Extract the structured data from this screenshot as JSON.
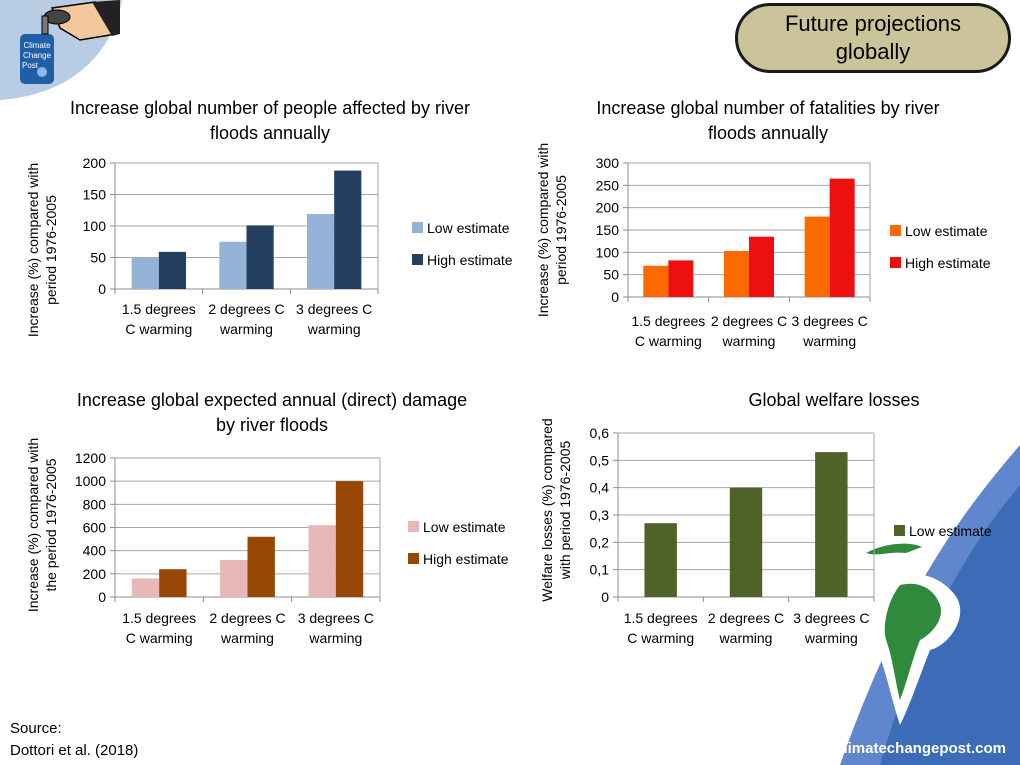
{
  "header": {
    "badge_text": "Future projections globally"
  },
  "logo": {
    "text_line1": "Climate",
    "text_line2": "Change",
    "text_line3": "Post"
  },
  "source": {
    "line1": "Source:",
    "line2": "Dottori et al. (2018)"
  },
  "footer": {
    "url": "www.climatechangepost.com"
  },
  "colors": {
    "people_low": "#95b3d7",
    "people_high": "#243f60",
    "fatal_low": "#fb6a00",
    "fatal_high": "#ee0f10",
    "damage_low": "#e6b8b8",
    "damage_high": "#974706",
    "welfare_low": "#4f6228"
  },
  "chart_data": [
    {
      "id": "people",
      "type": "bar",
      "title": [
        "Increase global number of people affected by river",
        "floods annually"
      ],
      "ylabel": [
        "Increase (%) compared with",
        "period 1976-2005"
      ],
      "categories": [
        [
          "1.5 degrees",
          "C warming"
        ],
        [
          "2 degrees C",
          "warming"
        ],
        [
          "3 degrees C",
          "warming"
        ]
      ],
      "ylim": [
        0,
        200
      ],
      "yticks": [
        0,
        50,
        100,
        150,
        200
      ],
      "ytick_labels": [
        "0",
        "50",
        "100",
        "150",
        "200"
      ],
      "series": [
        {
          "name": "Low estimate",
          "values": [
            50,
            75,
            119
          ]
        },
        {
          "name": "High estimate",
          "values": [
            59,
            101,
            188
          ]
        }
      ],
      "grid": true,
      "legend": "right"
    },
    {
      "id": "fatal",
      "type": "bar",
      "title": [
        "Increase global number of fatalities by river",
        "floods annually"
      ],
      "ylabel": [
        "Increase (%) compared with",
        "period 1976-2005"
      ],
      "categories": [
        [
          "1.5 degrees",
          "C warming"
        ],
        [
          "2 degrees C",
          "warming"
        ],
        [
          "3 degrees C",
          "warming"
        ]
      ],
      "ylim": [
        0,
        300
      ],
      "yticks": [
        0,
        50,
        100,
        150,
        200,
        250,
        300
      ],
      "ytick_labels": [
        "0",
        "50",
        "100",
        "150",
        "200",
        "250",
        "300"
      ],
      "series": [
        {
          "name": "Low estimate",
          "values": [
            70,
            103,
            180
          ]
        },
        {
          "name": "High estimate",
          "values": [
            82,
            135,
            265
          ]
        }
      ],
      "grid": true,
      "legend": "right"
    },
    {
      "id": "damage",
      "type": "bar",
      "title": [
        "Increase global expected annual (direct) damage",
        "by river floods"
      ],
      "ylabel": [
        "Increase (%) compared with",
        "the period 1976-2005"
      ],
      "categories": [
        [
          "1.5 degrees",
          "C warming"
        ],
        [
          "2 degrees C",
          "warming"
        ],
        [
          "3 degrees C",
          "warming"
        ]
      ],
      "ylim": [
        0,
        1200
      ],
      "yticks": [
        0,
        200,
        400,
        600,
        800,
        1000,
        1200
      ],
      "ytick_labels": [
        "0",
        "200",
        "400",
        "600",
        "800",
        "1000",
        "1200"
      ],
      "series": [
        {
          "name": "Low estimate",
          "values": [
            160,
            320,
            620
          ]
        },
        {
          "name": "High estimate",
          "values": [
            240,
            520,
            1000
          ]
        }
      ],
      "grid": true,
      "legend": "right"
    },
    {
      "id": "welfare",
      "type": "bar",
      "title": [
        "Global welfare losses"
      ],
      "ylabel": [
        "Welfare losses (%) compared",
        "with period 1976-2005"
      ],
      "categories": [
        [
          "1.5 degrees",
          "C warming"
        ],
        [
          "2 degrees C",
          "warming"
        ],
        [
          "3 degrees C",
          "warming"
        ]
      ],
      "ylim": [
        0,
        0.6
      ],
      "yticks": [
        0,
        0.1,
        0.2,
        0.3,
        0.4,
        0.5,
        0.6
      ],
      "ytick_labels": [
        "0",
        "0,1",
        "0,2",
        "0,3",
        "0,4",
        "0,5",
        "0,6"
      ],
      "series": [
        {
          "name": "Low estimate",
          "values": [
            0.27,
            0.4,
            0.53
          ]
        }
      ],
      "grid": true,
      "legend": "right"
    }
  ]
}
